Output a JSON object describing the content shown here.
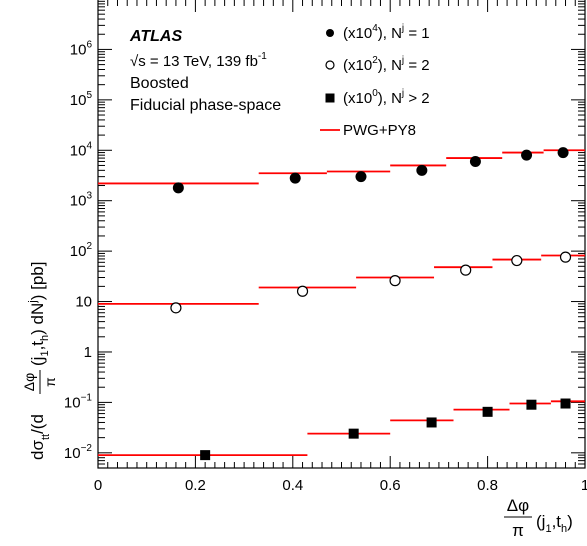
{
  "chart_data": {
    "type": "scatter",
    "yscale": "log",
    "xlim": [
      0,
      1
    ],
    "ylim": [
      0.005,
      10000000
    ],
    "grid": false,
    "legend_position": "top-right",
    "x_ticks": [
      {
        "value": 0,
        "label": "0"
      },
      {
        "value": 0.2,
        "label": "0.2"
      },
      {
        "value": 0.4,
        "label": "0.4"
      },
      {
        "value": 0.6,
        "label": "0.6"
      },
      {
        "value": 0.8,
        "label": "0.8"
      },
      {
        "value": 1,
        "label": "1"
      }
    ],
    "y_ticks": [
      {
        "value": 0.01,
        "base": "10",
        "exp": "−2"
      },
      {
        "value": 0.1,
        "base": "10",
        "exp": "−1"
      },
      {
        "value": 1,
        "base": "1",
        "exp": ""
      },
      {
        "value": 10,
        "base": "10",
        "exp": ""
      },
      {
        "value": 100,
        "base": "10",
        "exp": "2"
      },
      {
        "value": 1000,
        "base": "10",
        "exp": "3"
      },
      {
        "value": 10000,
        "base": "10",
        "exp": "4"
      },
      {
        "value": 100000,
        "base": "10",
        "exp": "5"
      },
      {
        "value": 1000000,
        "base": "10",
        "exp": "6"
      }
    ],
    "xlabel": {
      "frac_num": "Δφ",
      "frac_den": "π",
      "args": "(j",
      "sub1": "1",
      "mid": ",t",
      "sub2": "h",
      "close": ")"
    },
    "ylabel": {
      "d_sigma": "dσ",
      "tt_sub": "tt",
      "open": "/(d",
      "frac_num": "Δφ",
      "frac_den": "π",
      "args": "(j",
      "sub1": "1",
      "mid": ",t",
      "sub2": "h",
      "close": ") dN",
      "sup": "j",
      "tail": ") [pb]"
    },
    "annotations": {
      "atlas": "ATLAS",
      "energy_sqrt": "√s = 13 TeV, 139 fb",
      "energy_sup": "-1",
      "line2": "Boosted",
      "line3": "Fiducial phase-space"
    },
    "legend": [
      {
        "marker": "filled-circle",
        "pre": "(x10",
        "sup": "4",
        "mid": "), N",
        "nsup": "j",
        "post": " = 1"
      },
      {
        "marker": "open-circle",
        "pre": "(x10",
        "sup": "2",
        "mid": "), N",
        "nsup": "j",
        "post": " = 2"
      },
      {
        "marker": "filled-square",
        "pre": "(x10",
        "sup": "0",
        "mid": "), N",
        "nsup": "j",
        "post": " > 2"
      },
      {
        "marker": "line",
        "pre": "PWG+PY8",
        "sup": "",
        "mid": "",
        "nsup": "",
        "post": ""
      }
    ],
    "series": [
      {
        "name": "(x10^4), N^j = 1",
        "marker": "filled-circle",
        "x": [
          0.165,
          0.405,
          0.54,
          0.665,
          0.775,
          0.88,
          0.955
        ],
        "y": [
          1800,
          2800,
          3000,
          4000,
          6000,
          8000,
          9000
        ]
      },
      {
        "name": "(x10^2), N^j = 2",
        "marker": "open-circle",
        "x": [
          0.16,
          0.42,
          0.61,
          0.755,
          0.86,
          0.96
        ],
        "y": [
          7.5,
          16,
          26,
          42,
          65,
          76
        ]
      },
      {
        "name": "(x10^0), N^j > 2",
        "marker": "filled-square",
        "x": [
          0.22,
          0.525,
          0.685,
          0.8,
          0.89,
          0.96
        ],
        "y": [
          0.009,
          0.024,
          0.04,
          0.065,
          0.09,
          0.095
        ]
      }
    ],
    "predictions": [
      {
        "name": "PWG+PY8",
        "series": "N^j = 1",
        "bins": [
          [
            0,
            0.33,
            2200
          ],
          [
            0.33,
            0.47,
            3500
          ],
          [
            0.47,
            0.6,
            3800
          ],
          [
            0.6,
            0.715,
            5000
          ],
          [
            0.715,
            0.83,
            7000
          ],
          [
            0.83,
            0.915,
            9000
          ],
          [
            0.915,
            1.0,
            10000
          ]
        ]
      },
      {
        "name": "PWG+PY8",
        "series": "N^j = 2",
        "bins": [
          [
            0,
            0.33,
            9
          ],
          [
            0.33,
            0.53,
            19
          ],
          [
            0.53,
            0.69,
            30
          ],
          [
            0.69,
            0.81,
            48
          ],
          [
            0.81,
            0.91,
            68
          ],
          [
            0.91,
            1.0,
            82
          ]
        ]
      },
      {
        "name": "PWG+PY8",
        "series": "N^j > 2",
        "bins": [
          [
            0,
            0.43,
            0.009
          ],
          [
            0.43,
            0.6,
            0.024
          ],
          [
            0.6,
            0.73,
            0.044
          ],
          [
            0.73,
            0.845,
            0.072
          ],
          [
            0.845,
            0.93,
            0.095
          ],
          [
            0.93,
            1.0,
            0.105
          ]
        ]
      }
    ],
    "colors": {
      "prediction": "#ff0000",
      "data": "#000000"
    }
  }
}
